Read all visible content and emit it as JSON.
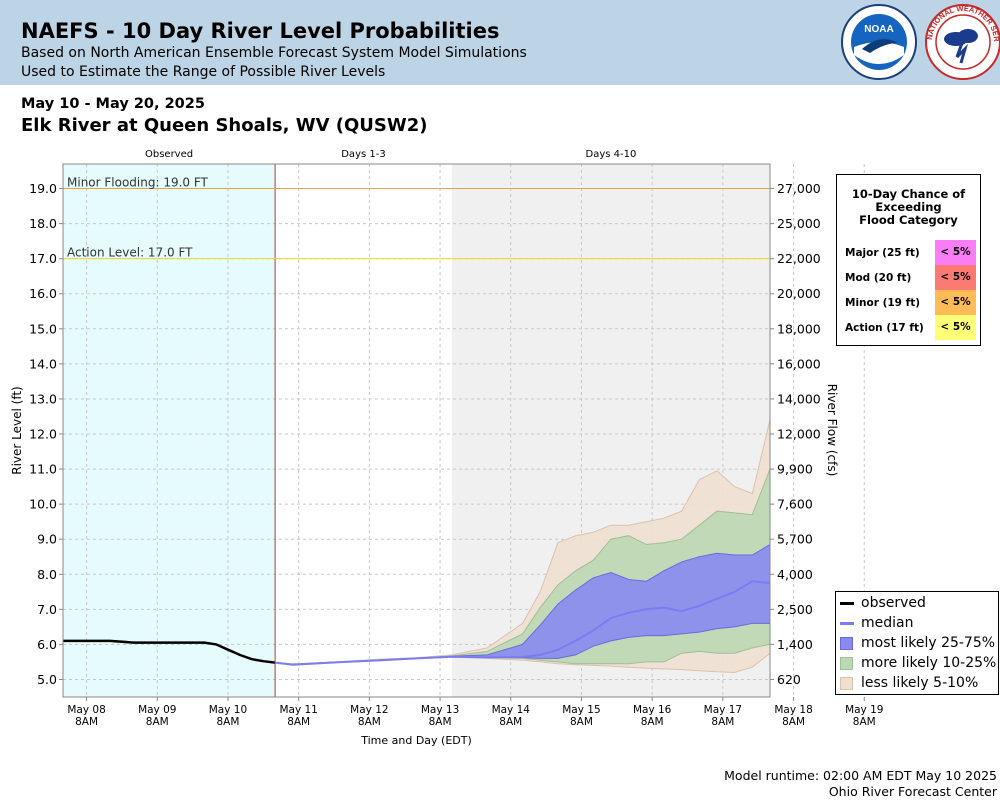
{
  "header": {
    "title": "NAEFS - 10 Day River Level Probabilities",
    "subtitle1": "Based on North American Ensemble Forecast System Model Simulations",
    "subtitle2": "Used to Estimate the Range of Possible River Levels",
    "logos": [
      "noaa-logo",
      "national-weather-service-logo"
    ],
    "noaa_text": "NOAA",
    "nws_text": "NATIONAL WEATHER SERVICE"
  },
  "date_range": "May 10 - May 20, 2025",
  "station": "Elk River at Queen Shoals, WV (QUSW2)",
  "colors": {
    "header_bg": "#bcd4e6",
    "observed_bg": "#e6fcfc",
    "days410_bg": "#f0f0f0",
    "median": "#7b7bf4",
    "band_25_75": "#8a8af0",
    "band_10_25": "#bcd8b4",
    "band_5_10": "#eedfcf",
    "minor_line": "#e8a050",
    "action_line": "#f2d81a"
  },
  "chart_data": {
    "type": "area",
    "period_labels": [
      "Observed",
      "Days 1-3",
      "Days 4-10"
    ],
    "x_tick_labels": [
      [
        "May 08",
        "8AM"
      ],
      [
        "May 09",
        "8AM"
      ],
      [
        "May 10",
        "8AM"
      ],
      [
        "May 11",
        "8AM"
      ],
      [
        "May 12",
        "8AM"
      ],
      [
        "May 13",
        "8AM"
      ],
      [
        "May 14",
        "8AM"
      ],
      [
        "May 15",
        "8AM"
      ],
      [
        "May 16",
        "8AM"
      ],
      [
        "May 17",
        "8AM"
      ],
      [
        "May 18",
        "8AM"
      ],
      [
        "May 19",
        "8AM"
      ]
    ],
    "x_range_hours": [
      -72,
      168
    ],
    "forecast_start_hour": 0,
    "days410_start_hour": 60,
    "xlabel": "Time and Day (EDT)",
    "ylabel": "River Level (ft)",
    "ylabel_right": "River Flow (cfs)",
    "ylim": [
      4.5,
      19.7
    ],
    "y_ticks": [
      5.0,
      6.0,
      7.0,
      8.0,
      9.0,
      10.0,
      11.0,
      12.0,
      13.0,
      14.0,
      15.0,
      16.0,
      17.0,
      18.0,
      19.0
    ],
    "y_tick_labels": [
      "5.0",
      "6.0",
      "7.0",
      "8.0",
      "9.0",
      "10.0",
      "11.0",
      "12.0",
      "13.0",
      "14.0",
      "15.0",
      "16.0",
      "17.0",
      "18.0",
      "19.0"
    ],
    "flow_ticks": [
      {
        "stage": 5.0,
        "label": "620"
      },
      {
        "stage": 6.0,
        "label": "1,400"
      },
      {
        "stage": 7.0,
        "label": "2,500"
      },
      {
        "stage": 8.0,
        "label": "4,000"
      },
      {
        "stage": 9.0,
        "label": "5,700"
      },
      {
        "stage": 10.0,
        "label": "7,600"
      },
      {
        "stage": 11.0,
        "label": "9,900"
      },
      {
        "stage": 12.0,
        "label": "12,000"
      },
      {
        "stage": 13.0,
        "label": "14,000"
      },
      {
        "stage": 14.0,
        "label": "16,000"
      },
      {
        "stage": 15.0,
        "label": "18,000"
      },
      {
        "stage": 16.0,
        "label": "20,000"
      },
      {
        "stage": 17.0,
        "label": "22,000"
      },
      {
        "stage": 18.0,
        "label": "25,000"
      },
      {
        "stage": 19.0,
        "label": "27,000"
      }
    ],
    "thresholds": [
      {
        "name": "Minor Flooding",
        "label": "Minor Flooding: 19.0 FT",
        "value": 19.0,
        "color": "#e8a050"
      },
      {
        "name": "Action Level",
        "label": "Action Level: 17.0 FT",
        "value": 17.0,
        "color": "#f2d81a"
      }
    ],
    "observed": {
      "x": [
        -72,
        -64,
        -56,
        -48,
        -40,
        -32,
        -24,
        -20,
        -16,
        -12,
        -8,
        -4,
        0
      ],
      "y": [
        6.1,
        6.1,
        6.1,
        6.05,
        6.05,
        6.05,
        6.05,
        6.0,
        5.85,
        5.7,
        5.58,
        5.52,
        5.48
      ]
    },
    "median": {
      "x": [
        0,
        6,
        12,
        24,
        36,
        48,
        60,
        72,
        84,
        90,
        96,
        102,
        108,
        114,
        120,
        126,
        132,
        138,
        144,
        150,
        156,
        162,
        168
      ],
      "y": [
        5.48,
        5.42,
        5.45,
        5.5,
        5.55,
        5.6,
        5.65,
        5.63,
        5.64,
        5.7,
        5.85,
        6.1,
        6.4,
        6.75,
        6.9,
        7.0,
        7.05,
        6.95,
        7.1,
        7.3,
        7.5,
        7.8,
        7.75
      ]
    },
    "bands": [
      {
        "name": "less likely 5-10%",
        "x": [
          0,
          6,
          12,
          24,
          36,
          48,
          60,
          72,
          84,
          90,
          96,
          102,
          108,
          114,
          120,
          126,
          132,
          138,
          144,
          150,
          156,
          162,
          168
        ],
        "upper": [
          5.48,
          5.45,
          5.46,
          5.52,
          5.58,
          5.62,
          5.7,
          5.9,
          6.6,
          7.5,
          8.9,
          9.1,
          9.2,
          9.4,
          9.4,
          9.5,
          9.6,
          9.8,
          10.7,
          10.95,
          10.5,
          10.3,
          12.4
        ],
        "lower": [
          5.48,
          5.42,
          5.44,
          5.5,
          5.55,
          5.6,
          5.64,
          5.6,
          5.55,
          5.5,
          5.45,
          5.42,
          5.4,
          5.38,
          5.35,
          5.32,
          5.3,
          5.28,
          5.25,
          5.22,
          5.2,
          5.35,
          5.75
        ]
      },
      {
        "name": "more likely 10-25%",
        "x": [
          0,
          6,
          12,
          24,
          36,
          48,
          60,
          72,
          84,
          90,
          96,
          102,
          108,
          114,
          120,
          126,
          132,
          138,
          144,
          150,
          156,
          162,
          168
        ],
        "upper": [
          5.48,
          5.44,
          5.46,
          5.51,
          5.56,
          5.61,
          5.67,
          5.8,
          6.3,
          7.05,
          7.7,
          8.1,
          8.4,
          9.0,
          9.1,
          8.85,
          8.9,
          9.0,
          9.4,
          9.8,
          9.75,
          9.7,
          11.0
        ],
        "lower": [
          5.48,
          5.42,
          5.45,
          5.5,
          5.55,
          5.6,
          5.65,
          5.62,
          5.6,
          5.55,
          5.5,
          5.45,
          5.45,
          5.45,
          5.45,
          5.5,
          5.5,
          5.75,
          5.8,
          5.75,
          5.75,
          5.9,
          6.0
        ]
      },
      {
        "name": "most likely 25-75%",
        "x": [
          0,
          6,
          12,
          24,
          36,
          48,
          60,
          72,
          84,
          90,
          96,
          102,
          108,
          114,
          120,
          126,
          132,
          138,
          144,
          150,
          156,
          162,
          168
        ],
        "upper": [
          5.48,
          5.43,
          5.46,
          5.51,
          5.56,
          5.61,
          5.66,
          5.7,
          6.0,
          6.55,
          7.15,
          7.55,
          7.9,
          8.05,
          7.85,
          7.8,
          8.1,
          8.35,
          8.5,
          8.6,
          8.55,
          8.55,
          8.85
        ],
        "lower": [
          5.48,
          5.42,
          5.45,
          5.5,
          5.55,
          5.6,
          5.65,
          5.63,
          5.62,
          5.6,
          5.6,
          5.7,
          5.95,
          6.1,
          6.2,
          6.25,
          6.25,
          6.3,
          6.35,
          6.45,
          6.5,
          6.6,
          6.6
        ]
      }
    ],
    "legend": [
      "observed",
      "median",
      "most likely 25-75%",
      "more likely 10-25%",
      "less likely 5-10%"
    ]
  },
  "flood_table": {
    "title_lines": [
      "10-Day Chance of",
      "Exceeding",
      "Flood Category"
    ],
    "rows": [
      {
        "label": "Major (25 ft)",
        "value": "< 5%",
        "color": "#f97df5"
      },
      {
        "label": "Mod (20 ft)",
        "value": "< 5%",
        "color": "#fb7b72"
      },
      {
        "label": "Minor (19 ft)",
        "value": "< 5%",
        "color": "#ffbb55"
      },
      {
        "label": "Action (17 ft)",
        "value": "< 5%",
        "color": "#ffff77"
      }
    ]
  },
  "footer": {
    "runtime": "Model runtime: 02:00 AM EDT May 10 2025",
    "center": "Ohio River Forecast Center"
  }
}
